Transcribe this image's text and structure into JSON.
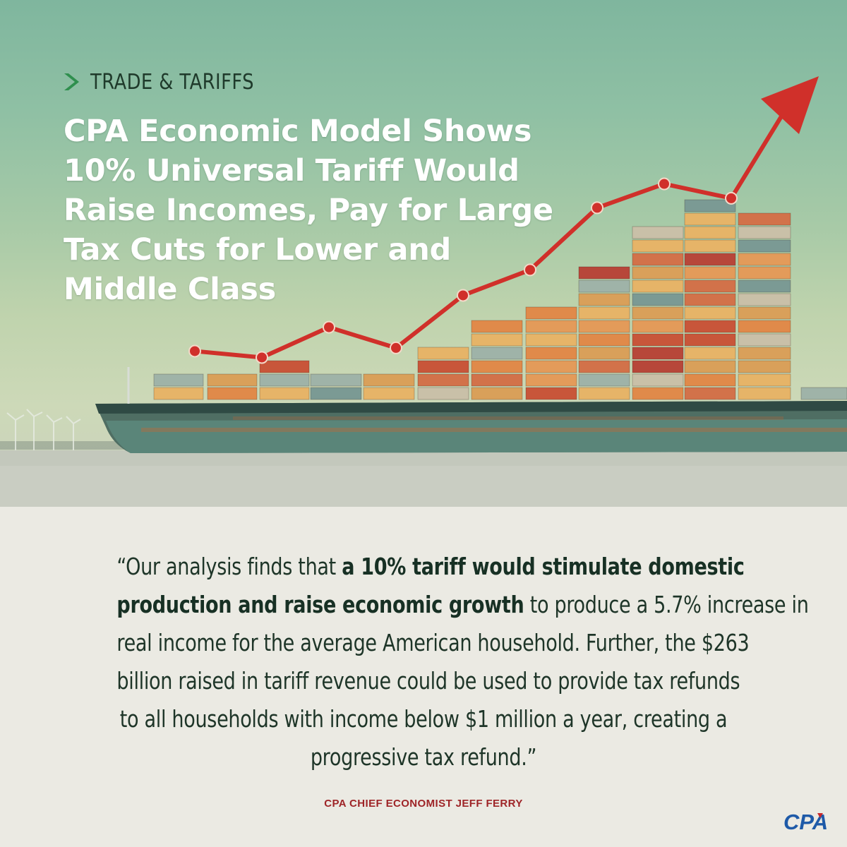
{
  "category": {
    "label": "TRADE & TARIFFS",
    "icon": "chevron-right-icon",
    "icon_color": "#2f8f4e"
  },
  "headline": {
    "lines": [
      "CPA Economic Model Shows",
      "10% Universal Tariff Would",
      "Raise Incomes, Pay for Large",
      "Tax Cuts for Lower and",
      "Middle Class"
    ]
  },
  "chart_data": {
    "type": "line",
    "series": [
      {
        "values": [
          1,
          0.6,
          2.5,
          1.2,
          4.5,
          6.1,
          10,
          11.5,
          10.6
        ]
      }
    ],
    "markers": "circle",
    "trend_arrow": true,
    "line_color": "#d0302a"
  },
  "quote": {
    "open": "“Our analysis finds that ",
    "bold1": "a 10% tariff would stimulate domestic",
    "bold2": "production and raise economic growth",
    "line2_rest": " to produce a 5.7% increase in",
    "line3": "real income for the average American household. Further, the $263",
    "line4": "billion raised in tariff revenue could be used to provide tax refunds",
    "line5": "to all households with income below $1 million a year, creating a",
    "line6": "progressive tax refund.”"
  },
  "attribution": "CPA CHIEF ECONOMIST JEFF FERRY",
  "logo": {
    "text": "CPA",
    "icon": "cpa-logo-icon",
    "colors": [
      "#1e5aa8",
      "#c8282c"
    ]
  },
  "colors": {
    "accent_red": "#9e2427",
    "text_dark": "#1e3528",
    "panel_bg": "#ebeae3"
  }
}
